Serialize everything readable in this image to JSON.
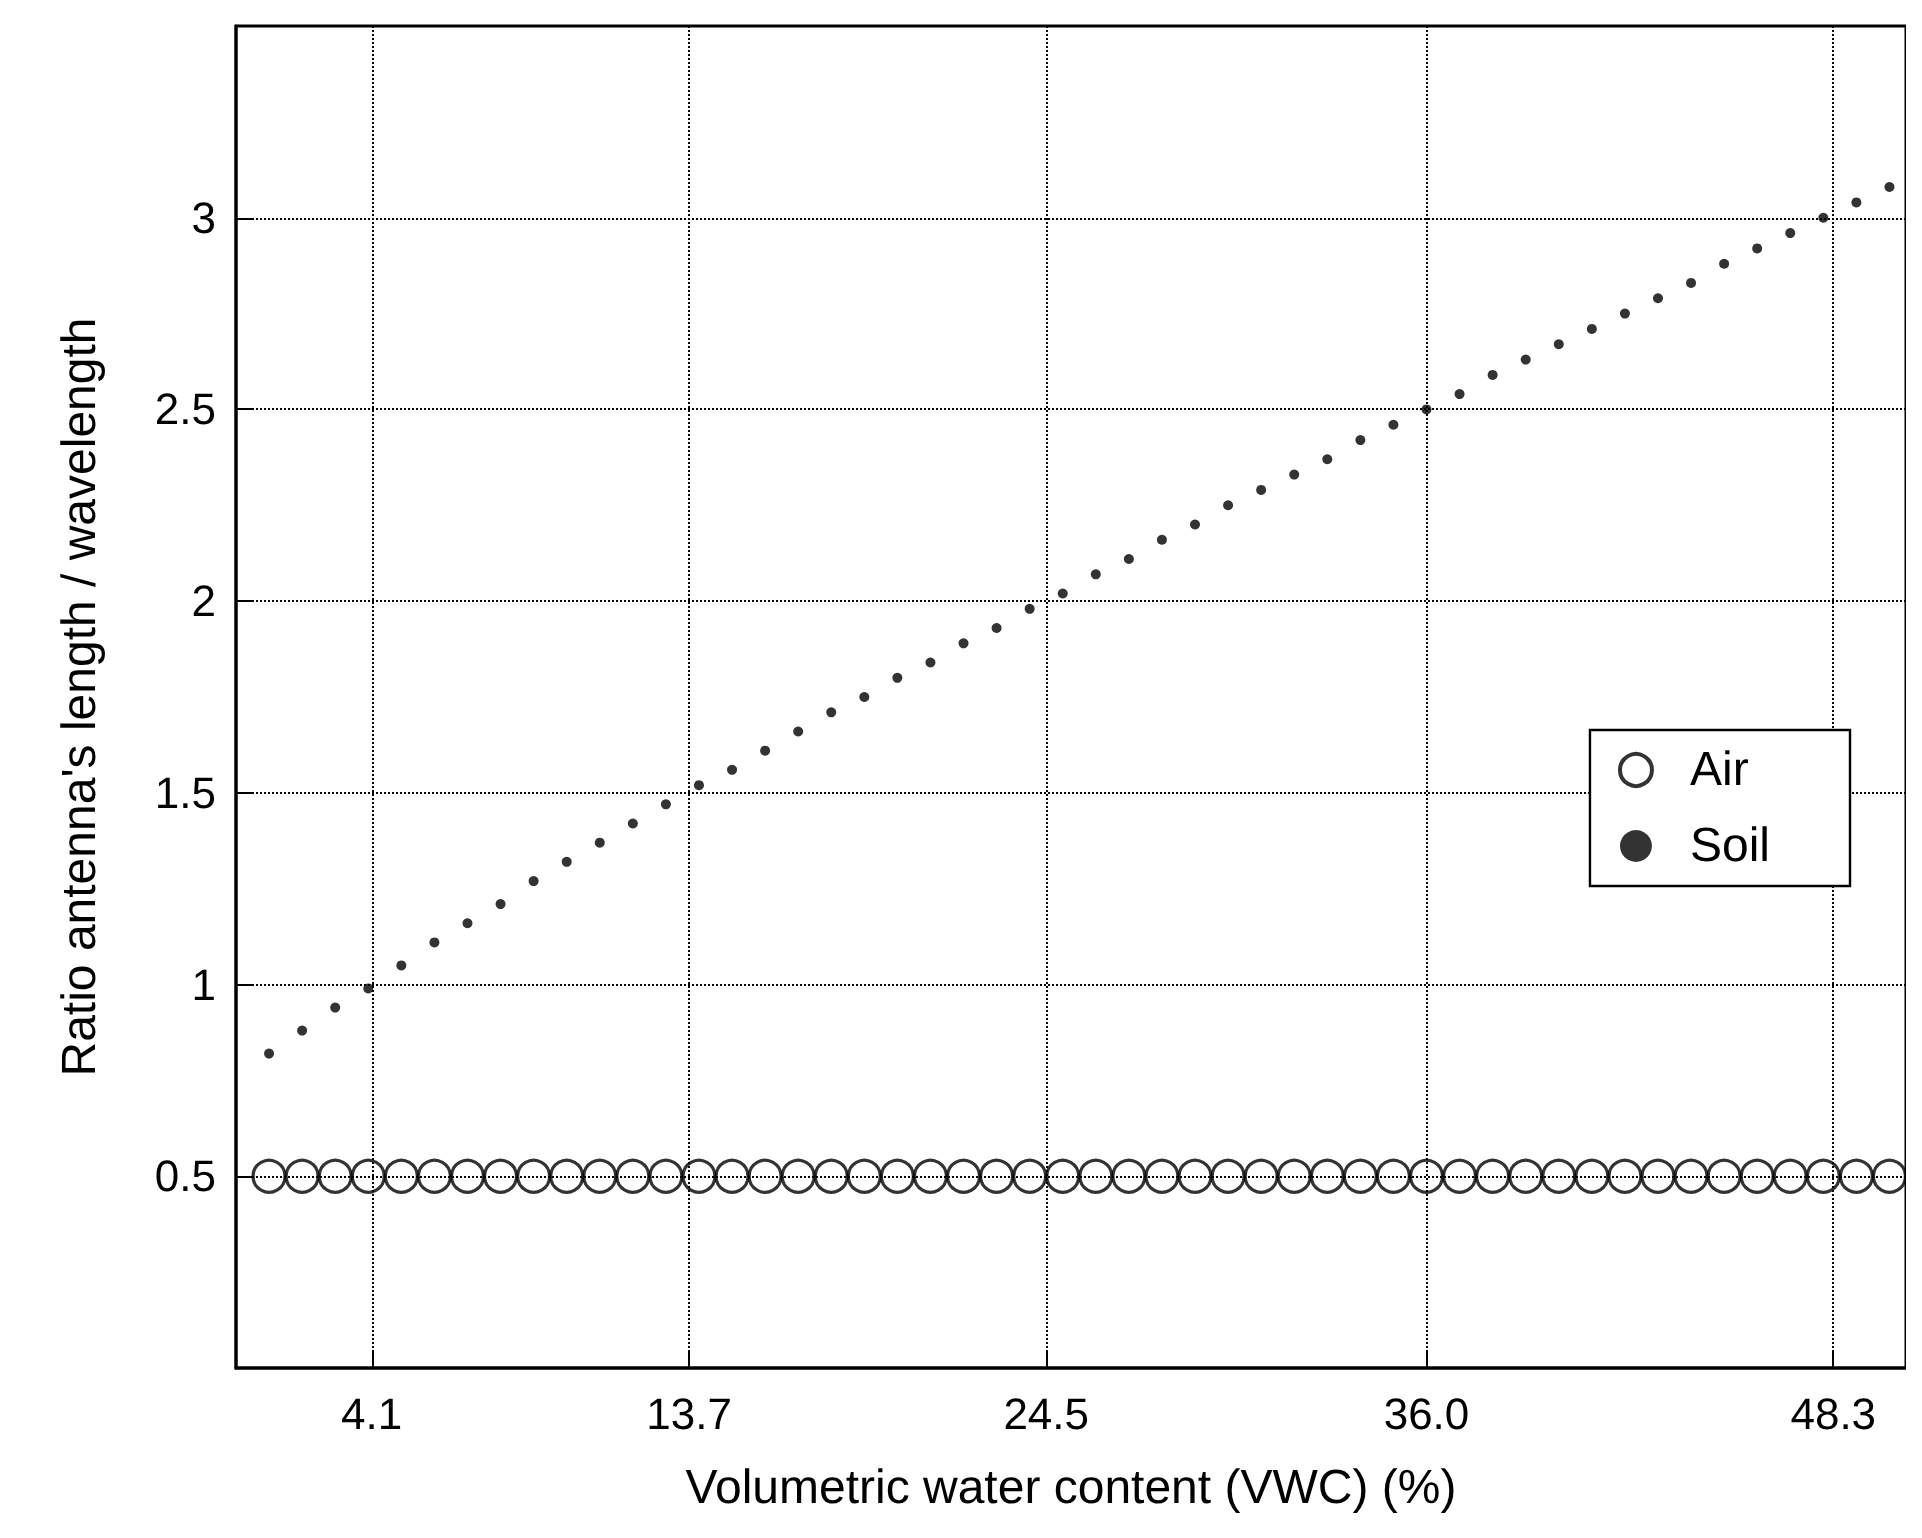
{
  "chart_data": {
    "type": "scatter",
    "xlabel": "Volumetric water content (VWC) (%)",
    "ylabel": "Ratio antenna's length / wavelength",
    "x": [
      1,
      2,
      3,
      4,
      5,
      6,
      7,
      8,
      9,
      10,
      11,
      12,
      13,
      14,
      15,
      16,
      17,
      18,
      19,
      20,
      21,
      22,
      23,
      24,
      25,
      26,
      27,
      28,
      29,
      30,
      31,
      32,
      33,
      34,
      35,
      36,
      37,
      38,
      39,
      40,
      41,
      42,
      43,
      44,
      45,
      46,
      47,
      48,
      49,
      50
    ],
    "series": [
      {
        "name": "Air",
        "color": "#000000",
        "values": [
          0.5,
          0.5,
          0.5,
          0.5,
          0.5,
          0.5,
          0.5,
          0.5,
          0.5,
          0.5,
          0.5,
          0.5,
          0.5,
          0.5,
          0.5,
          0.5,
          0.5,
          0.5,
          0.5,
          0.5,
          0.5,
          0.5,
          0.5,
          0.5,
          0.5,
          0.5,
          0.5,
          0.5,
          0.5,
          0.5,
          0.5,
          0.5,
          0.5,
          0.5,
          0.5,
          0.5,
          0.5,
          0.5,
          0.5,
          0.5,
          0.5,
          0.5,
          0.5,
          0.5,
          0.5,
          0.5,
          0.5,
          0.5,
          0.5,
          0.5
        ]
      },
      {
        "name": "Soil",
        "color": "#000000",
        "values": [
          0.82,
          0.88,
          0.94,
          0.99,
          1.05,
          1.11,
          1.16,
          1.21,
          1.27,
          1.32,
          1.37,
          1.42,
          1.47,
          1.52,
          1.56,
          1.61,
          1.66,
          1.71,
          1.75,
          1.8,
          1.84,
          1.89,
          1.93,
          1.98,
          2.02,
          2.07,
          2.11,
          2.16,
          2.2,
          2.25,
          2.29,
          2.33,
          2.37,
          2.42,
          2.46,
          2.5,
          2.54,
          2.59,
          2.63,
          2.67,
          2.71,
          2.75,
          2.79,
          2.83,
          2.88,
          2.92,
          2.96,
          3.0,
          3.04,
          3.08
        ]
      }
    ],
    "xlim": [
      0,
      50.5
    ],
    "xticks": [
      4.1,
      13.7,
      24.5,
      {
        "value": 36,
        "label": "36.0"
      },
      48.3
    ],
    "ylim": [
      0,
      3.5
    ],
    "yticks": [
      0.5,
      1,
      1.5,
      2,
      2.5,
      3
    ],
    "grid": true,
    "legend": "right",
    "marker": "circle",
    "line_style": "dotted"
  }
}
